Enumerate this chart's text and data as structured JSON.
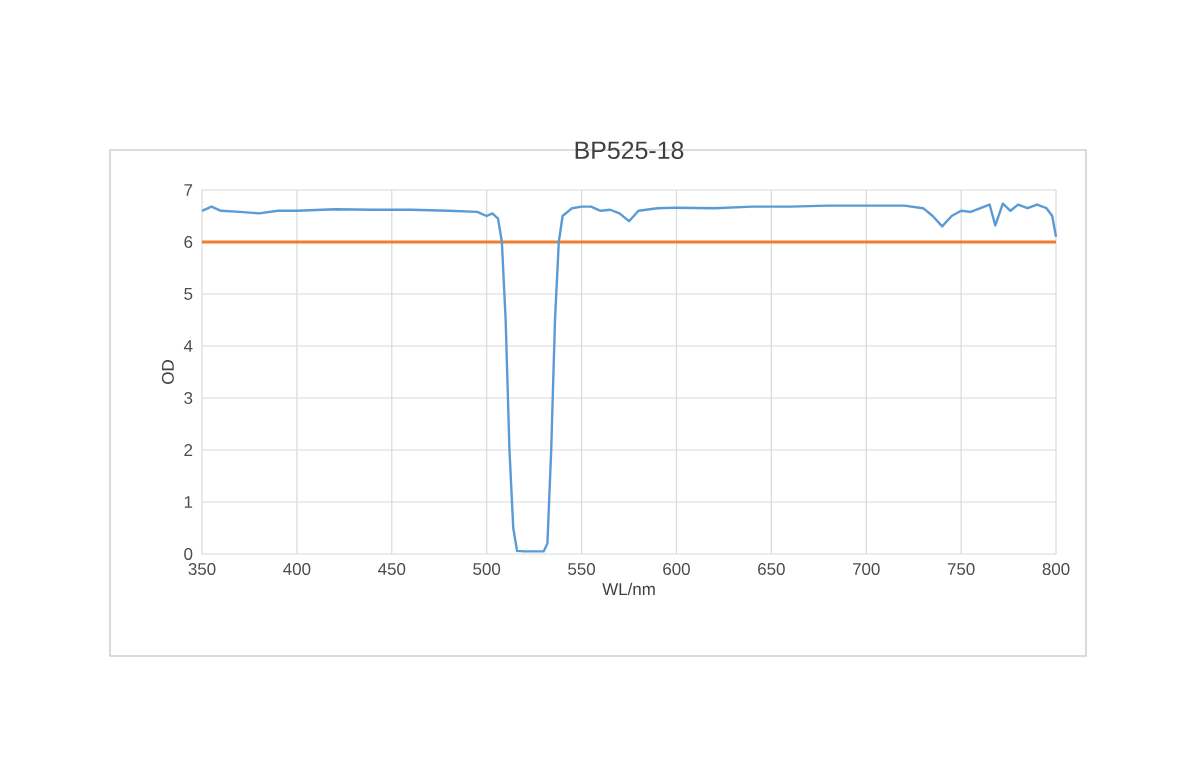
{
  "chart_data": {
    "type": "line",
    "title": "BP525-18",
    "xlabel": "WL/nm",
    "ylabel": "OD",
    "xlim": [
      350,
      800
    ],
    "ylim": [
      0,
      7
    ],
    "xticks": [
      350,
      400,
      450,
      500,
      550,
      600,
      650,
      700,
      750,
      800
    ],
    "yticks": [
      0,
      1,
      2,
      3,
      4,
      5,
      6,
      7
    ],
    "grid": true,
    "ref_lines": [
      {
        "axis": "y",
        "value": 6,
        "color": "#ed7d31"
      }
    ],
    "series": [
      {
        "color": "#5b9bd5",
        "x": [
          350,
          355,
          360,
          370,
          380,
          390,
          400,
          420,
          440,
          460,
          480,
          495,
          500,
          503,
          506,
          508,
          510,
          512,
          514,
          516,
          520,
          530,
          532,
          534,
          536,
          538,
          540,
          545,
          550,
          555,
          560,
          565,
          570,
          575,
          580,
          590,
          600,
          620,
          640,
          660,
          680,
          700,
          720,
          730,
          735,
          740,
          745,
          750,
          755,
          760,
          765,
          768,
          772,
          776,
          780,
          785,
          790,
          795,
          798,
          800
        ],
        "values": [
          6.6,
          6.68,
          6.6,
          6.58,
          6.55,
          6.6,
          6.6,
          6.63,
          6.62,
          6.62,
          6.6,
          6.58,
          6.5,
          6.55,
          6.45,
          6.0,
          4.5,
          2.0,
          0.5,
          0.06,
          0.05,
          0.05,
          0.2,
          2.0,
          4.5,
          6.0,
          6.5,
          6.65,
          6.68,
          6.68,
          6.6,
          6.62,
          6.55,
          6.4,
          6.6,
          6.65,
          6.66,
          6.65,
          6.68,
          6.68,
          6.7,
          6.7,
          6.7,
          6.65,
          6.5,
          6.3,
          6.5,
          6.6,
          6.58,
          6.65,
          6.72,
          6.32,
          6.74,
          6.6,
          6.72,
          6.65,
          6.72,
          6.65,
          6.5,
          6.1
        ]
      }
    ]
  }
}
